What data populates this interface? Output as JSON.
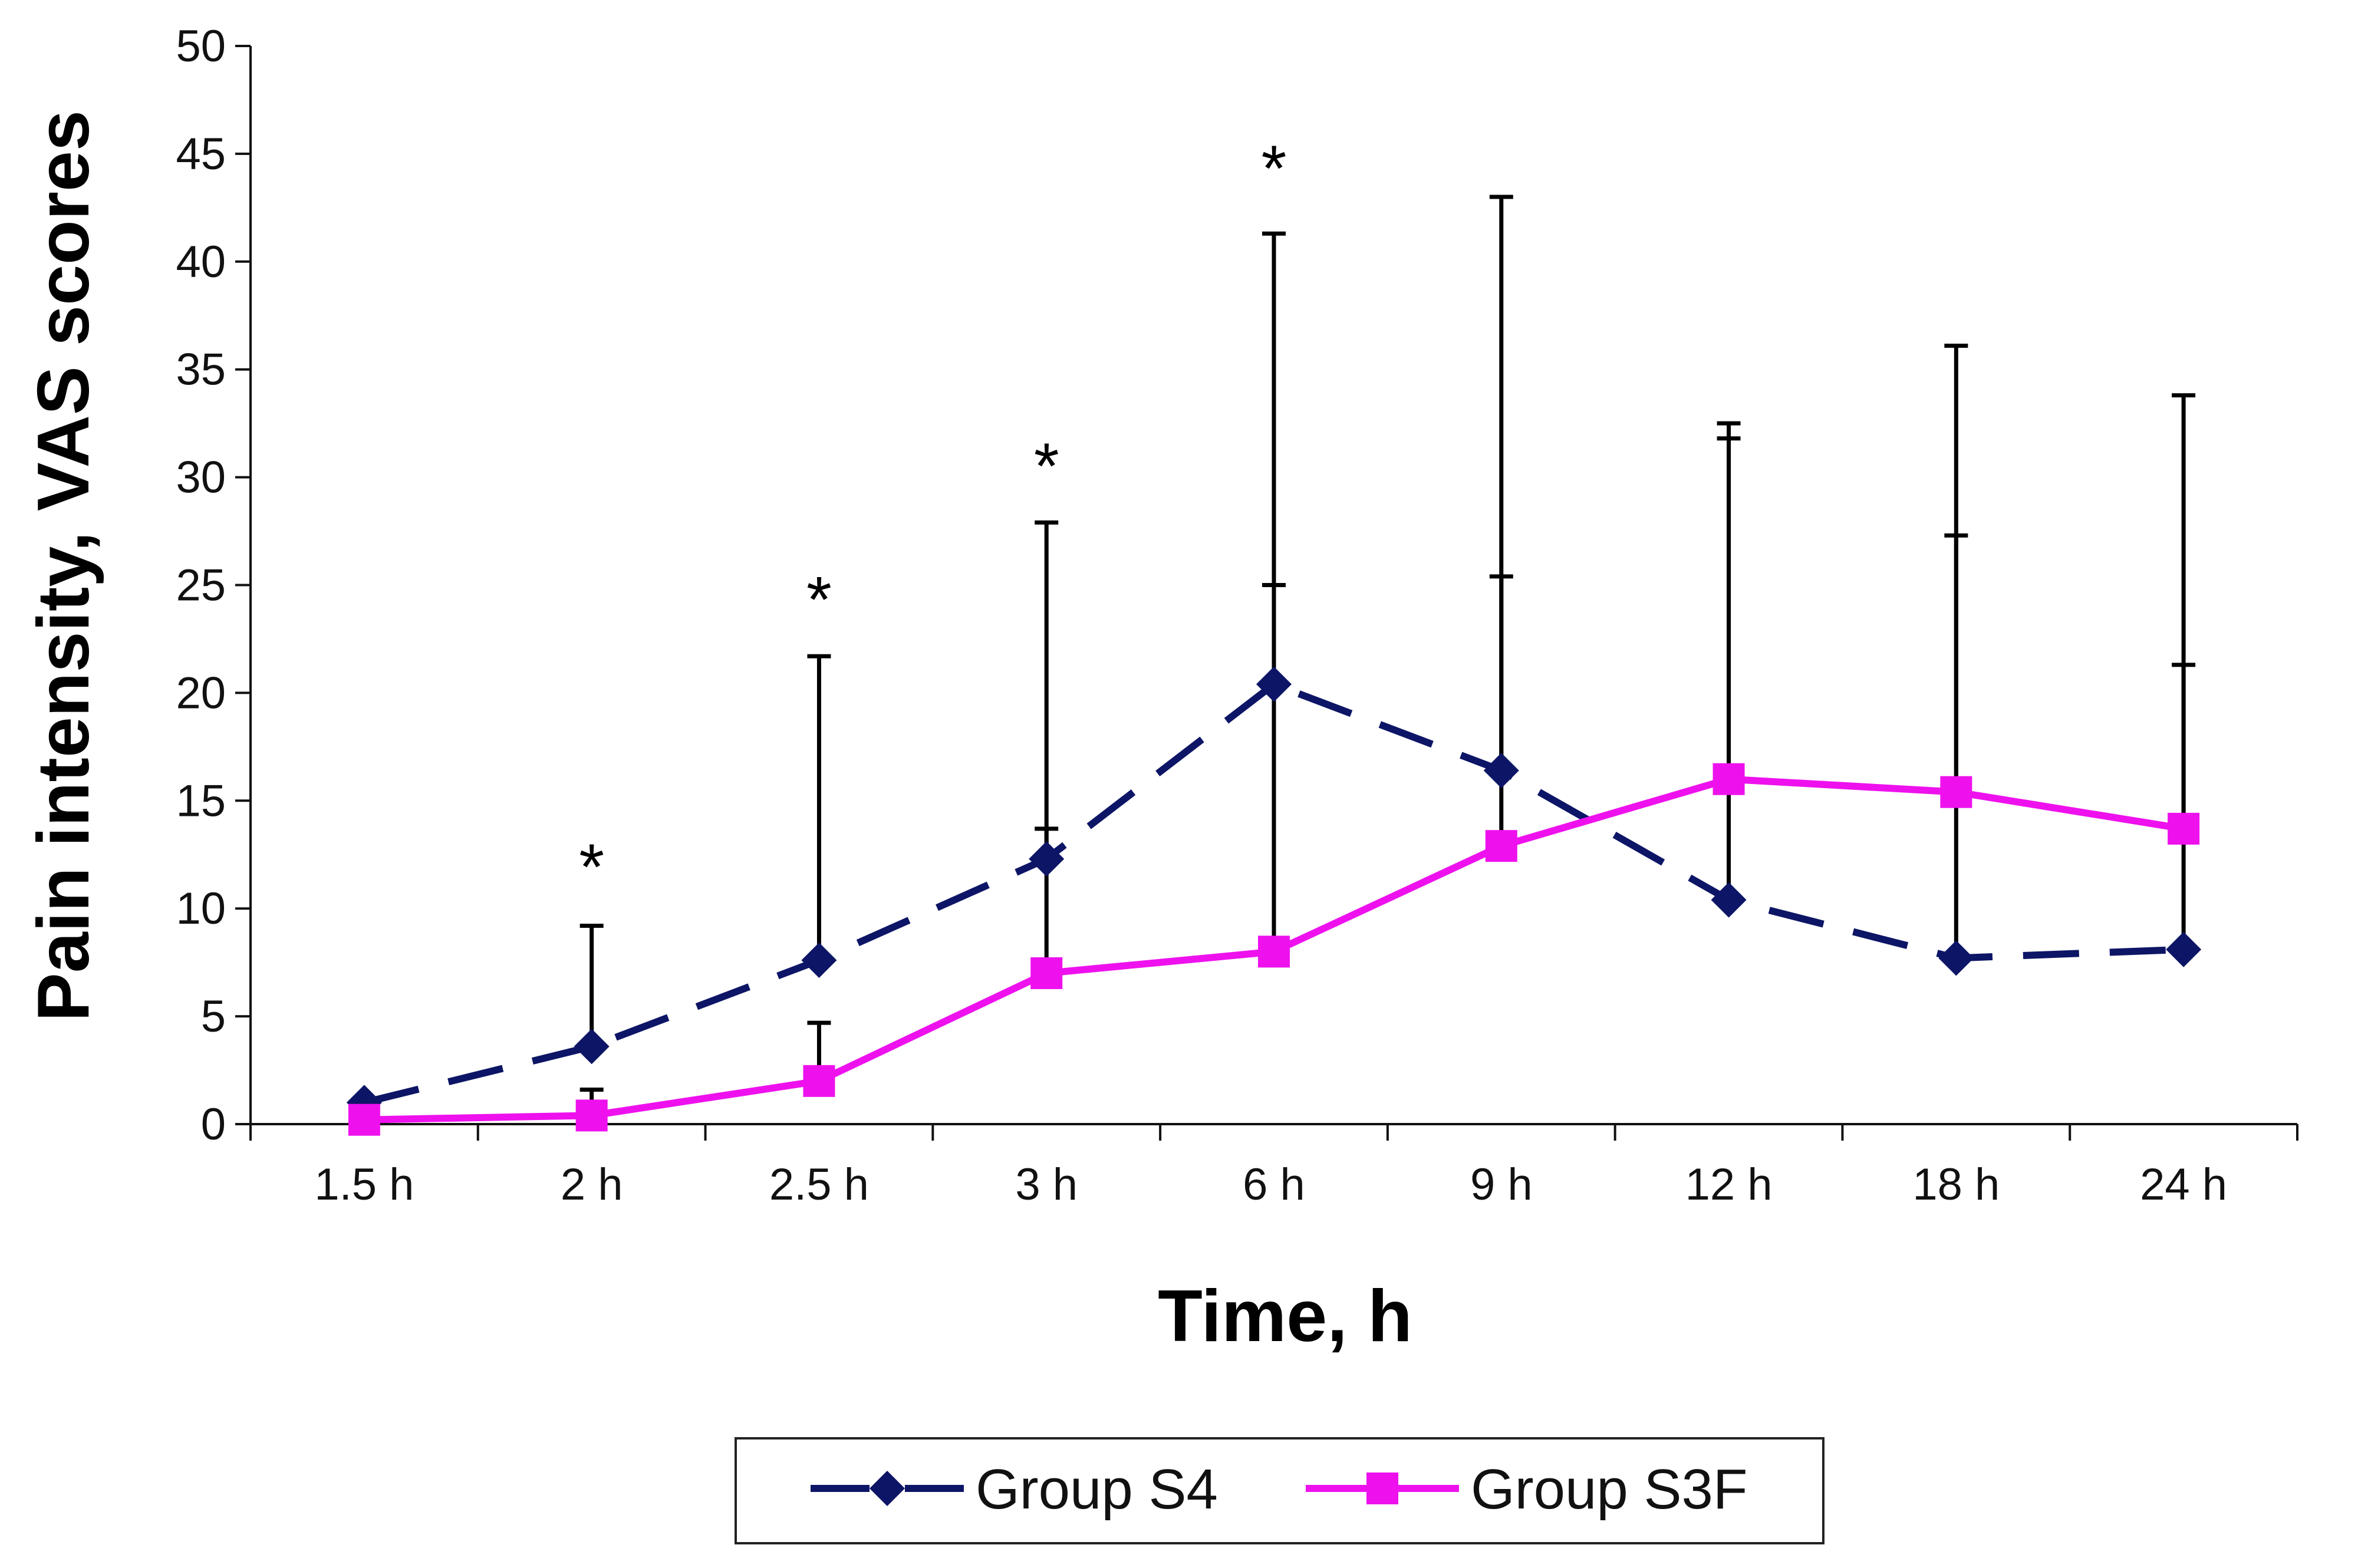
{
  "chart_data": {
    "type": "line",
    "xlabel": "Time, h",
    "ylabel": "Pain intensity, VAS scores",
    "categories": [
      "1.5 h",
      "2 h",
      "2.5 h",
      "3 h",
      "6 h",
      "9 h",
      "12 h",
      "18 h",
      "24 h"
    ],
    "ylim": [
      0,
      50
    ],
    "yticks": [
      0,
      5,
      10,
      15,
      20,
      25,
      30,
      35,
      40,
      45,
      50
    ],
    "grid": false,
    "legend_position": "bottom",
    "series": [
      {
        "name": "Group S4",
        "color": "#0d1566",
        "line_style": "dashed",
        "marker": "diamond",
        "values": [
          1.0,
          3.6,
          7.6,
          12.3,
          20.4,
          16.4,
          10.4,
          7.7,
          8.1
        ],
        "error_upper": [
          1.0,
          9.2,
          21.7,
          27.9,
          41.3,
          43.0,
          32.5,
          36.1,
          33.8
        ]
      },
      {
        "name": "Group S3F",
        "color": "#ee11ee",
        "line_style": "solid",
        "marker": "square",
        "values": [
          0.2,
          0.4,
          2.0,
          7.0,
          8.0,
          12.9,
          16.0,
          15.4,
          13.7
        ],
        "error_upper": [
          0.2,
          1.6,
          4.7,
          13.7,
          25.0,
          25.4,
          31.8,
          27.3,
          21.3
        ]
      }
    ],
    "annotations": [
      {
        "category": "2 h",
        "text": "*",
        "y": 12.2
      },
      {
        "category": "2.5 h",
        "text": "*",
        "y": 24.6
      },
      {
        "category": "3 h",
        "text": "*",
        "y": 30.8
      },
      {
        "category": "6 h",
        "text": "*",
        "y": 44.6
      }
    ]
  }
}
